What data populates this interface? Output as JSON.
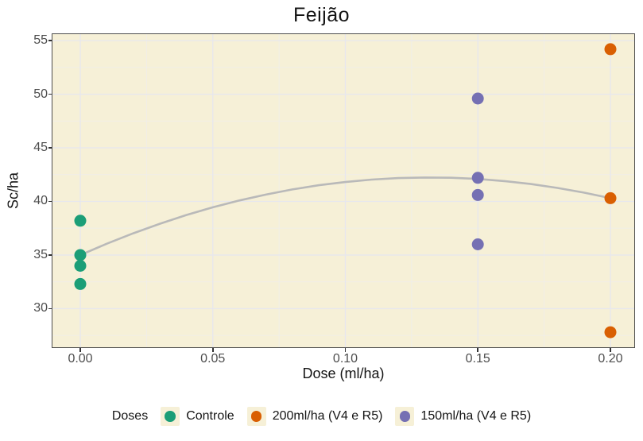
{
  "colors": {
    "background": "#ffffff",
    "panel_background": "#f6f0d7",
    "grid_major": "#e7e7ee",
    "grid_minor": "#f0eee9",
    "trend_line": "#b9b9b9",
    "axis_text": "#4d4d4d",
    "text": "#141414",
    "panel_border": "#4d4d4d",
    "tick_mark": "#333333"
  },
  "chart_data": {
    "type": "scatter",
    "title": "Feijão",
    "xlabel": "Dose (ml/ha)",
    "ylabel": "Sc/ha",
    "xlim": [
      -0.0105,
      0.209
    ],
    "ylim": [
      26.4,
      55.6
    ],
    "x_ticks": [
      0,
      0.05,
      0.1,
      0.15,
      0.2
    ],
    "x_tick_labels": [
      "0.00",
      "0.05",
      "0.10",
      "0.15",
      "0.20"
    ],
    "x_minor_ticks": [
      0.025,
      0.075,
      0.125,
      0.175
    ],
    "y_ticks": [
      30,
      35,
      40,
      45,
      50,
      55
    ],
    "y_tick_labels": [
      "30",
      "35",
      "40",
      "45",
      "50",
      "55"
    ],
    "y_minor_ticks": [
      27.5,
      32.5,
      37.5,
      42.5,
      47.5,
      52.5
    ],
    "grid": true,
    "legend_position": "bottom",
    "legend_title": "Doses",
    "point_radius": 7.5,
    "series": [
      {
        "name": "Controle",
        "color": "#1b9e77",
        "points": [
          [
            0,
            38.2
          ],
          [
            0,
            35.0
          ],
          [
            0,
            34.0
          ],
          [
            0,
            32.3
          ]
        ]
      },
      {
        "name": "200ml/ha (V4 e R5)",
        "color": "#d95f02",
        "points": [
          [
            0.2,
            54.2
          ],
          [
            0.2,
            40.3
          ],
          [
            0.2,
            27.8
          ]
        ]
      },
      {
        "name": "150ml/ha (V4 e R5)",
        "color": "#7570b3",
        "points": [
          [
            0.15,
            49.6
          ],
          [
            0.15,
            42.2
          ],
          [
            0.15,
            40.6
          ],
          [
            0.15,
            36.0
          ]
        ]
      }
    ],
    "trend_line": {
      "points": [
        [
          0.0,
          35.0
        ],
        [
          0.01,
          36.06
        ],
        [
          0.02,
          37.03
        ],
        [
          0.03,
          37.92
        ],
        [
          0.04,
          38.73
        ],
        [
          0.05,
          39.45
        ],
        [
          0.06,
          40.09
        ],
        [
          0.07,
          40.64
        ],
        [
          0.08,
          41.12
        ],
        [
          0.09,
          41.51
        ],
        [
          0.1,
          41.81
        ],
        [
          0.11,
          42.04
        ],
        [
          0.12,
          42.18
        ],
        [
          0.13,
          42.23
        ],
        [
          0.14,
          42.21
        ],
        [
          0.15,
          42.1
        ],
        [
          0.16,
          41.9
        ],
        [
          0.17,
          41.62
        ],
        [
          0.18,
          41.26
        ],
        [
          0.19,
          40.82
        ],
        [
          0.2,
          40.3
        ]
      ]
    }
  }
}
